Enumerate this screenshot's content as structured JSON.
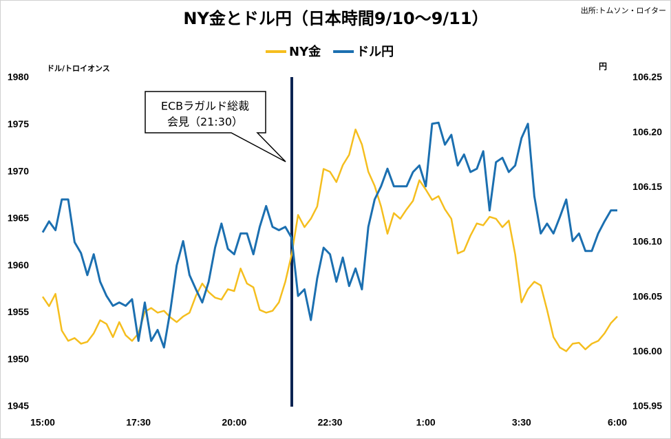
{
  "chart_data": {
    "type": "line",
    "title": "NY金とドル円（日本時間9/10～9/11）",
    "source": "出所:トムソン・ロイター",
    "y_label": "ドル/トロイオンス",
    "y2_label": "円",
    "annotation": [
      "ECBラガルド総裁",
      "会見（21:30）"
    ],
    "categories": [
      "15:00",
      null,
      null,
      null,
      null,
      null,
      null,
      null,
      null,
      null,
      null,
      null,
      null,
      null,
      null,
      "17:30",
      null,
      null,
      null,
      null,
      null,
      null,
      null,
      null,
      null,
      null,
      null,
      null,
      null,
      null,
      "20:00",
      null,
      null,
      null,
      null,
      null,
      null,
      null,
      null,
      null,
      null,
      null,
      null,
      null,
      null,
      "22:30",
      null,
      null,
      null,
      null,
      null,
      null,
      null,
      null,
      null,
      null,
      null,
      null,
      null,
      null,
      "1:00",
      null,
      null,
      null,
      null,
      null,
      null,
      null,
      null,
      null,
      null,
      null,
      null,
      null,
      null,
      "3:30",
      null,
      null,
      null,
      null,
      null,
      null,
      null,
      null,
      null,
      null,
      null,
      null,
      null,
      null,
      "6:00"
    ],
    "series": [
      {
        "name": "NY金",
        "color": "#f5be1e",
        "values": [
          1956.7,
          1955.7,
          1957,
          1953.1,
          1952,
          1952.3,
          1951.7,
          1951.9,
          1952.8,
          1954.2,
          1953.8,
          1952.4,
          1954,
          1952.6,
          1952,
          1952.8,
          1955.1,
          1955.5,
          1955,
          1955.2,
          1954.5,
          1954,
          1954.6,
          1955,
          1956.8,
          1958.1,
          1957.2,
          1956.6,
          1956.4,
          1957.5,
          1957.3,
          1959.7,
          1958.1,
          1957.7,
          1955.3,
          1955,
          1955.2,
          1956.1,
          1958.3,
          1961.2,
          1965.4,
          1964.1,
          1965,
          1966.3,
          1970.3,
          1970,
          1968.9,
          1970.7,
          1971.8,
          1974.5,
          1972.9,
          1970,
          1968.5,
          1966.3,
          1963.4,
          1965.6,
          1965,
          1966,
          1966.9,
          1969.1,
          1968.1,
          1967,
          1967.4,
          1966,
          1965,
          1961.3,
          1961.6,
          1963.2,
          1964.5,
          1964.3,
          1965.2,
          1965,
          1964.1,
          1964.8,
          1961.2,
          1956.1,
          1957.5,
          1958.3,
          1957.9,
          1955.3,
          1952.4,
          1951.3,
          1950.9,
          1951.7,
          1951.8,
          1951.1,
          1951.7,
          1952,
          1952.8,
          1953.9,
          1954.6
        ]
      },
      {
        "name": "ドル円",
        "color": "#1b6fb0",
        "axis": "y2",
        "values": [
          106.109,
          106.119,
          106.111,
          106.139,
          106.139,
          106.1,
          106.09,
          106.07,
          106.089,
          106.064,
          106.051,
          106.042,
          106.045,
          106.042,
          106.048,
          106.01,
          106.045,
          106.01,
          106.02,
          106.004,
          106.038,
          106.079,
          106.101,
          106.07,
          106.057,
          106.045,
          106.064,
          106.095,
          106.117,
          106.094,
          106.089,
          106.108,
          106.108,
          106.089,
          106.114,
          106.133,
          106.114,
          106.111,
          106.114,
          106.104,
          106.051,
          106.057,
          106.029,
          106.067,
          106.095,
          106.089,
          106.064,
          106.086,
          106.06,
          106.076,
          106.057,
          106.114,
          106.139,
          106.151,
          106.167,
          106.151,
          106.151,
          106.151,
          106.164,
          106.17,
          106.151,
          106.208,
          106.209,
          106.189,
          106.198,
          106.17,
          106.18,
          106.164,
          106.167,
          106.183,
          106.129,
          106.173,
          106.177,
          106.164,
          106.17,
          106.195,
          106.208,
          106.142,
          106.108,
          106.117,
          106.108,
          106.123,
          106.139,
          106.101,
          106.108,
          106.092,
          106.092,
          106.108,
          106.119,
          106.129,
          106.129
        ]
      }
    ],
    "ylim": [
      1945,
      1980
    ],
    "yticks": [
      1945,
      1950,
      1955,
      1960,
      1965,
      1970,
      1975,
      1980
    ],
    "y2lim": [
      105.95,
      106.25
    ],
    "y2ticks": [
      105.95,
      {
        "value": 106,
        "label": "106.00"
      },
      106.05,
      {
        "value": 106.1,
        "label": "106.10"
      },
      106.15,
      {
        "value": 106.2,
        "label": "106.20"
      },
      106.25
    ],
    "grid": false
  }
}
